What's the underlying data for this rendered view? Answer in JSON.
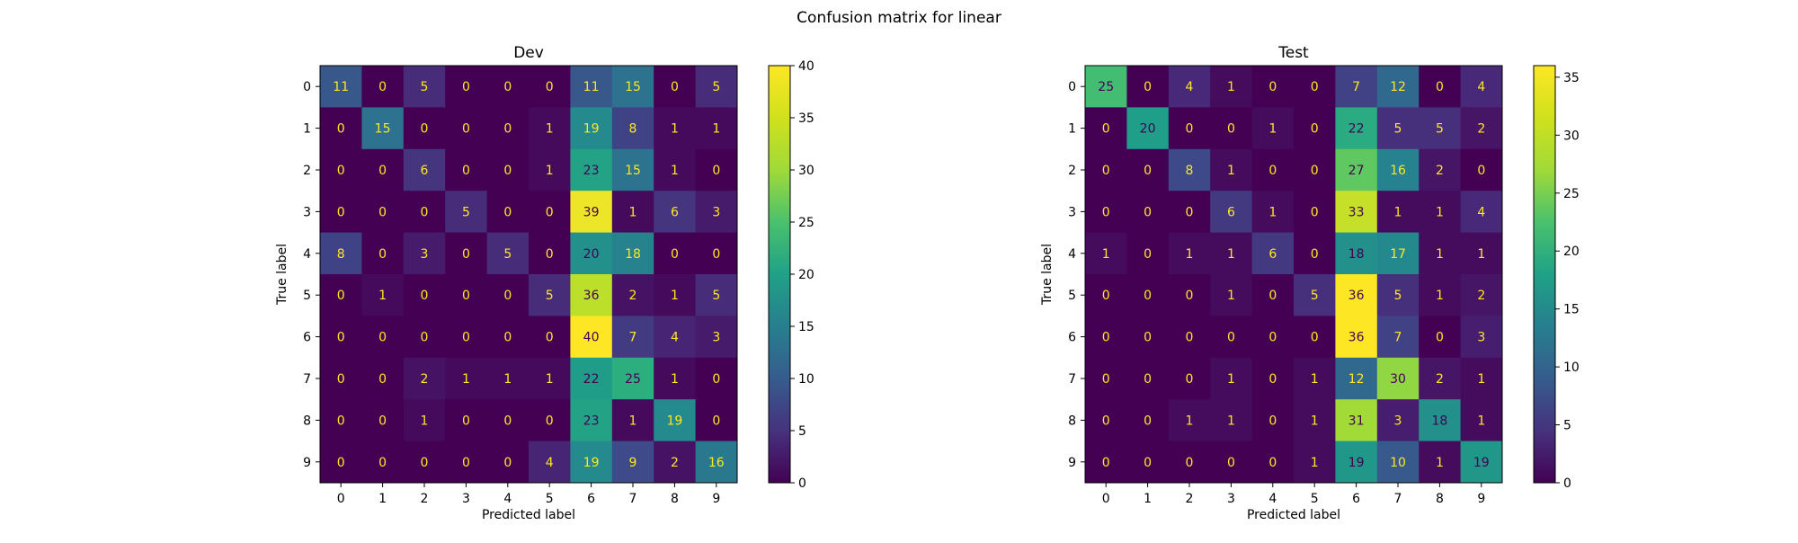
{
  "figure": {
    "title": "Confusion matrix for linear"
  },
  "chart_data": [
    {
      "type": "heatmap",
      "title": "Dev",
      "xlabel": "Predicted label",
      "ylabel": "True label",
      "x_categories": [
        "0",
        "1",
        "2",
        "3",
        "4",
        "5",
        "6",
        "7",
        "8",
        "9"
      ],
      "y_categories": [
        "0",
        "1",
        "2",
        "3",
        "4",
        "5",
        "6",
        "7",
        "8",
        "9"
      ],
      "colormap": "viridis",
      "vmin": 0,
      "vmax": 40,
      "colorbar_ticks": [
        0,
        5,
        10,
        15,
        20,
        25,
        30,
        35,
        40
      ],
      "matrix": [
        [
          11,
          0,
          5,
          0,
          0,
          0,
          11,
          15,
          0,
          5
        ],
        [
          0,
          15,
          0,
          0,
          0,
          1,
          19,
          8,
          1,
          1
        ],
        [
          0,
          0,
          6,
          0,
          0,
          1,
          23,
          15,
          1,
          0
        ],
        [
          0,
          0,
          0,
          5,
          0,
          0,
          39,
          1,
          6,
          3
        ],
        [
          8,
          0,
          3,
          0,
          5,
          0,
          20,
          18,
          0,
          0
        ],
        [
          0,
          1,
          0,
          0,
          0,
          5,
          36,
          2,
          1,
          5
        ],
        [
          0,
          0,
          0,
          0,
          0,
          0,
          40,
          7,
          4,
          3
        ],
        [
          0,
          0,
          2,
          1,
          1,
          1,
          22,
          25,
          1,
          0
        ],
        [
          0,
          0,
          1,
          0,
          0,
          0,
          23,
          1,
          19,
          0
        ],
        [
          0,
          0,
          0,
          0,
          0,
          4,
          19,
          9,
          2,
          16
        ]
      ]
    },
    {
      "type": "heatmap",
      "title": "Test",
      "xlabel": "Predicted label",
      "ylabel": "True label",
      "x_categories": [
        "0",
        "1",
        "2",
        "3",
        "4",
        "5",
        "6",
        "7",
        "8",
        "9"
      ],
      "y_categories": [
        "0",
        "1",
        "2",
        "3",
        "4",
        "5",
        "6",
        "7",
        "8",
        "9"
      ],
      "colormap": "viridis",
      "vmin": 0,
      "vmax": 36,
      "colorbar_ticks": [
        0,
        5,
        10,
        15,
        20,
        25,
        30,
        35
      ],
      "matrix": [
        [
          25,
          0,
          4,
          1,
          0,
          0,
          7,
          12,
          0,
          4
        ],
        [
          0,
          20,
          0,
          0,
          1,
          0,
          22,
          5,
          5,
          2
        ],
        [
          0,
          0,
          8,
          1,
          0,
          0,
          27,
          16,
          2,
          0
        ],
        [
          0,
          0,
          0,
          6,
          1,
          0,
          33,
          1,
          1,
          4
        ],
        [
          1,
          0,
          1,
          1,
          6,
          0,
          18,
          17,
          1,
          1
        ],
        [
          0,
          0,
          0,
          1,
          0,
          5,
          36,
          5,
          1,
          2
        ],
        [
          0,
          0,
          0,
          0,
          0,
          0,
          36,
          7,
          0,
          3
        ],
        [
          0,
          0,
          0,
          1,
          0,
          1,
          12,
          30,
          2,
          1
        ],
        [
          0,
          0,
          1,
          1,
          0,
          1,
          31,
          3,
          18,
          1
        ],
        [
          0,
          0,
          0,
          0,
          0,
          1,
          19,
          10,
          1,
          19
        ]
      ]
    }
  ]
}
